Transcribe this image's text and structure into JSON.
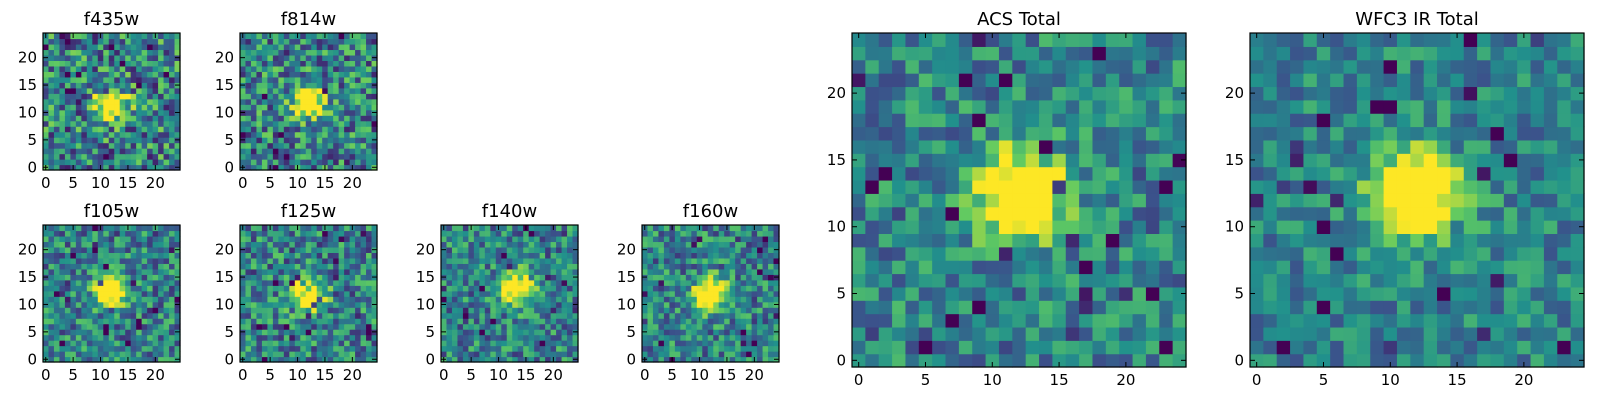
{
  "figure": {
    "colormap": [
      "#440154",
      "#3b528b",
      "#21918c",
      "#5ec962",
      "#fde725"
    ],
    "panels_small": [
      {
        "title": "f435w",
        "peak": [
          12,
          11.5
        ],
        "noise": 0.36,
        "seed": 11
      },
      {
        "title": "f814w",
        "peak": [
          12,
          12
        ],
        "noise": 0.34,
        "seed": 23
      },
      {
        "title": "f105w",
        "peak": [
          12,
          12.5
        ],
        "noise": 0.28,
        "seed": 37
      },
      {
        "title": "f125w",
        "peak": [
          12,
          12
        ],
        "noise": 0.3,
        "seed": 41
      },
      {
        "title": "f140w",
        "peak": [
          13,
          13
        ],
        "noise": 0.28,
        "seed": 53
      },
      {
        "title": "f160w",
        "peak": [
          12,
          12
        ],
        "noise": 0.28,
        "seed": 67
      }
    ],
    "panels_large": [
      {
        "title": "ACS Total",
        "peak": [
          12,
          12.5
        ],
        "noise": 0.24,
        "seed": 79
      },
      {
        "title": "WFC3 IR Total",
        "peak": [
          12,
          12.5
        ],
        "noise": 0.2,
        "seed": 97
      }
    ]
  },
  "chart_data": [
    {
      "type": "heatmap",
      "title": "f435w",
      "grid": [
        25,
        25
      ],
      "xlim": [
        0,
        24
      ],
      "ylim": [
        0,
        24
      ],
      "x_ticks": [
        0,
        5,
        10,
        15,
        20
      ],
      "y_ticks": [
        0,
        5,
        10,
        15,
        20
      ],
      "bright_source_center": [
        12,
        11.5
      ]
    },
    {
      "type": "heatmap",
      "title": "f814w",
      "grid": [
        25,
        25
      ],
      "xlim": [
        0,
        24
      ],
      "ylim": [
        0,
        24
      ],
      "x_ticks": [
        0,
        5,
        10,
        15,
        20
      ],
      "y_ticks": [
        0,
        5,
        10,
        15,
        20
      ],
      "bright_source_center": [
        12,
        12
      ]
    },
    {
      "type": "heatmap",
      "title": "f105w",
      "grid": [
        25,
        25
      ],
      "xlim": [
        0,
        24
      ],
      "ylim": [
        0,
        24
      ],
      "x_ticks": [
        0,
        5,
        10,
        15,
        20
      ],
      "y_ticks": [
        0,
        5,
        10,
        15,
        20
      ],
      "bright_source_center": [
        12,
        12.5
      ]
    },
    {
      "type": "heatmap",
      "title": "f125w",
      "grid": [
        25,
        25
      ],
      "xlim": [
        0,
        24
      ],
      "ylim": [
        0,
        24
      ],
      "x_ticks": [
        0,
        5,
        10,
        15,
        20
      ],
      "y_ticks": [
        0,
        5,
        10,
        15,
        20
      ],
      "bright_source_center": [
        12,
        12
      ]
    },
    {
      "type": "heatmap",
      "title": "f140w",
      "grid": [
        25,
        25
      ],
      "xlim": [
        0,
        24
      ],
      "ylim": [
        0,
        24
      ],
      "x_ticks": [
        0,
        5,
        10,
        15,
        20
      ],
      "y_ticks": [
        0,
        5,
        10,
        15,
        20
      ],
      "bright_source_center": [
        13,
        13
      ]
    },
    {
      "type": "heatmap",
      "title": "f160w",
      "grid": [
        25,
        25
      ],
      "xlim": [
        0,
        24
      ],
      "ylim": [
        0,
        24
      ],
      "x_ticks": [
        0,
        5,
        10,
        15,
        20
      ],
      "y_ticks": [
        0,
        5,
        10,
        15,
        20
      ],
      "bright_source_center": [
        12,
        12
      ]
    },
    {
      "type": "heatmap",
      "title": "ACS Total",
      "grid": [
        25,
        25
      ],
      "xlim": [
        0,
        24
      ],
      "ylim": [
        0,
        24
      ],
      "x_ticks": [
        0,
        5,
        10,
        15,
        20
      ],
      "y_ticks": [
        0,
        5,
        10,
        15,
        20
      ],
      "bright_source_center": [
        12,
        12.5
      ]
    },
    {
      "type": "heatmap",
      "title": "WFC3 IR Total",
      "grid": [
        25,
        25
      ],
      "xlim": [
        0,
        24
      ],
      "ylim": [
        0,
        24
      ],
      "x_ticks": [
        0,
        5,
        10,
        15,
        20
      ],
      "y_ticks": [
        0,
        5,
        10,
        15,
        20
      ],
      "bright_source_center": [
        12,
        12.5
      ]
    }
  ]
}
